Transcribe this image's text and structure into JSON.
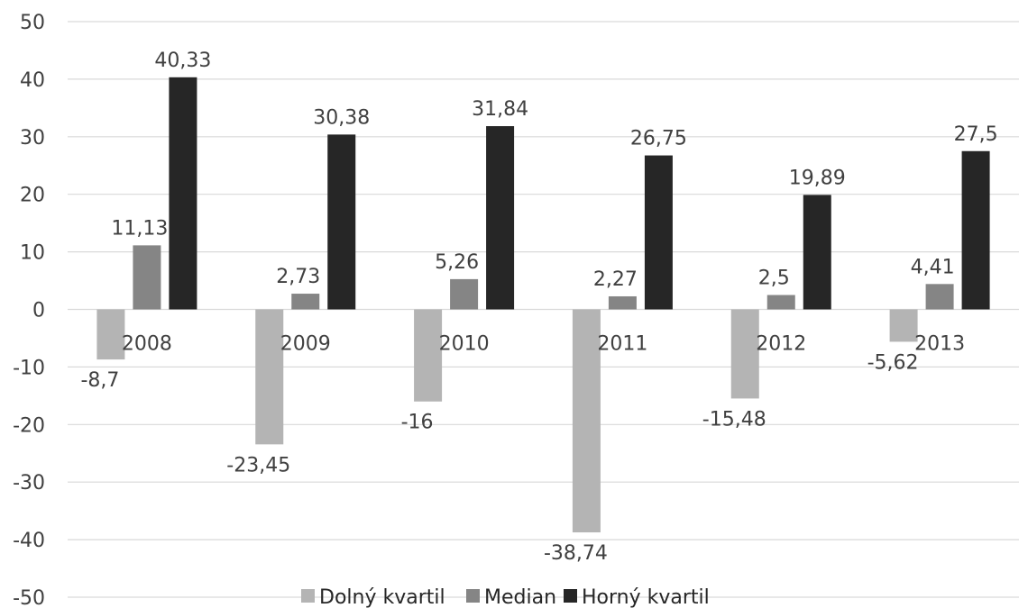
{
  "chart_data": {
    "type": "bar",
    "title": "",
    "xlabel": "",
    "ylabel": "",
    "categories": [
      "2008",
      "2009",
      "2010",
      "2011",
      "2012",
      "2013"
    ],
    "series": [
      {
        "name": "Dolný kvartil",
        "values": [
          -8.7,
          -23.45,
          -16,
          -38.74,
          -15.48,
          -5.62
        ],
        "labels": [
          "-8,7",
          "-23,45",
          "-16",
          "-38,74",
          "-15,48",
          "-5,62"
        ],
        "color": "#b4b4b4"
      },
      {
        "name": "Median",
        "values": [
          11.13,
          2.73,
          5.26,
          2.27,
          2.5,
          4.41
        ],
        "labels": [
          "11,13",
          "2,73",
          "5,26",
          "2,27",
          "2,5",
          "4,41"
        ],
        "color": "#858585"
      },
      {
        "name": "Horný kvartil",
        "values": [
          40.33,
          30.38,
          31.84,
          26.75,
          19.89,
          27.5
        ],
        "labels": [
          "40,33",
          "30,38",
          "31,84",
          "26,75",
          "19,89",
          "27,5"
        ],
        "color": "#262626"
      }
    ],
    "ylim": [
      -50,
      50
    ],
    "yticks": [
      "-50",
      "-40",
      "-30",
      "-20",
      "-10",
      "0",
      "10",
      "20",
      "30",
      "40",
      "50"
    ],
    "grid": true,
    "legend_position": "bottom"
  }
}
